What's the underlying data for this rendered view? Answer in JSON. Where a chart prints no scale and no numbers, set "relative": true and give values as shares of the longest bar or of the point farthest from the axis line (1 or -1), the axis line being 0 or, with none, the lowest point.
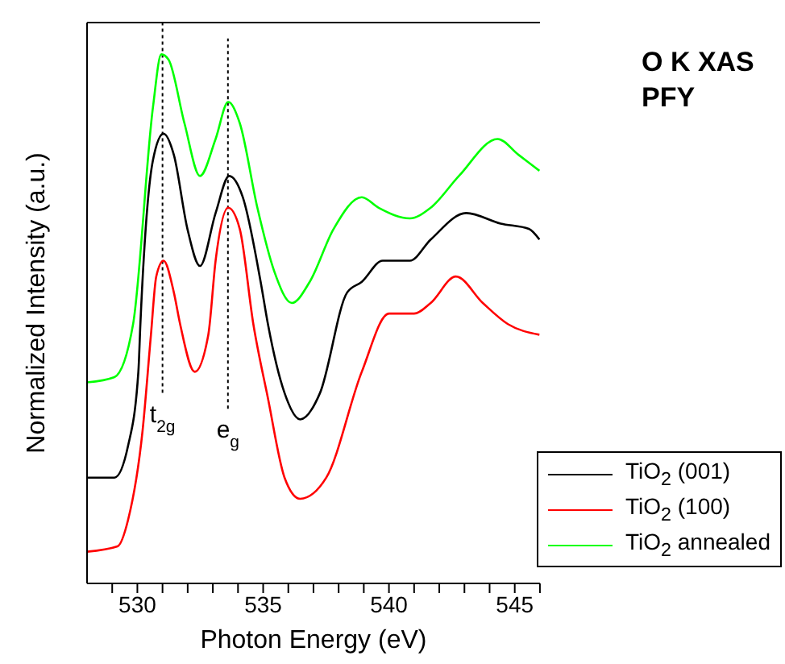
{
  "chart_data": {
    "type": "line",
    "title": "O K XAS",
    "subtitle": "PFY",
    "xlabel": "Photon Energy (eV)",
    "ylabel": "Normalized Intensity (a.u.)",
    "relative": true,
    "xlim": [
      528,
      546
    ],
    "xticks": [
      {
        "value": 529,
        "label": null
      },
      530,
      {
        "value": 531,
        "label": null
      },
      {
        "value": 532,
        "label": null
      },
      {
        "value": 533,
        "label": null
      },
      {
        "value": 534,
        "label": null
      },
      535,
      {
        "value": 536,
        "label": null
      },
      {
        "value": 537,
        "label": null
      },
      {
        "value": 538,
        "label": null
      },
      {
        "value": 539,
        "label": null
      },
      540,
      {
        "value": 541,
        "label": null
      },
      {
        "value": 542,
        "label": null
      },
      {
        "value": 543,
        "label": null
      },
      {
        "value": 544,
        "label": null
      },
      545,
      {
        "value": 546,
        "label": null
      }
    ],
    "legend": "bottom right",
    "grid": false,
    "marker": "none",
    "line_style": "solid",
    "ref_lines": [
      {
        "axis": "x",
        "value": 531,
        "label": "t$_{2g}$",
        "line_style": "dotted",
        "color": "#000000"
      },
      {
        "axis": "x",
        "value": 533.6,
        "label": "e$_{g}$",
        "line_style": "dotted",
        "color": "#000000"
      }
    ],
    "series": [
      {
        "name": "TiO$_{2}$ (001)",
        "color": "#000000",
        "x": [
          528.0,
          529.09,
          529.63,
          530.04,
          530.12,
          530.62,
          531.04,
          531.45,
          531.99,
          532.49,
          533.11,
          533.65,
          534.19,
          534.9,
          535.19,
          535.85,
          536.47,
          537.26,
          538.34,
          538.92,
          539.75,
          540.83,
          541.66,
          543.07,
          544.44,
          545.56,
          545.98
        ],
        "values": [
          0.2,
          0.2,
          0.26,
          0.4,
          0.49,
          0.8,
          0.85,
          0.81,
          0.67,
          0.6,
          0.7,
          0.77,
          0.73,
          0.57,
          0.49,
          0.36,
          0.31,
          0.36,
          0.55,
          0.57,
          0.61,
          0.61,
          0.65,
          0.7,
          0.68,
          0.67,
          0.65
        ]
      },
      {
        "name": "TiO$_{2}$ (100)",
        "color": "#ff0000",
        "x": [
          528.0,
          529.21,
          529.63,
          530.21,
          530.54,
          530.75,
          531.04,
          531.45,
          531.7,
          532.28,
          532.82,
          533.11,
          533.61,
          534.07,
          534.61,
          535.19,
          535.85,
          536.47,
          537.51,
          538.92,
          540.0,
          541.0,
          541.66,
          542.66,
          543.73,
          544.73,
          545.98
        ],
        "values": [
          0.06,
          0.07,
          0.12,
          0.29,
          0.47,
          0.58,
          0.61,
          0.55,
          0.49,
          0.4,
          0.47,
          0.61,
          0.71,
          0.67,
          0.49,
          0.35,
          0.2,
          0.16,
          0.2,
          0.4,
          0.51,
          0.51,
          0.53,
          0.58,
          0.53,
          0.49,
          0.47
        ]
      },
      {
        "name": "TiO$_{2}$ annealed",
        "color": "#00ff00",
        "x": [
          528.0,
          529.09,
          529.83,
          530.62,
          530.95,
          531.24,
          531.87,
          532.49,
          533.11,
          533.61,
          534.07,
          534.77,
          535.44,
          536.14,
          536.85,
          537.8,
          538.92,
          539.59,
          540.83,
          541.66,
          542.78,
          544.32,
          545.15,
          545.98
        ],
        "values": [
          0.38,
          0.39,
          0.49,
          0.9,
          1.0,
          0.99,
          0.87,
          0.77,
          0.84,
          0.91,
          0.87,
          0.71,
          0.59,
          0.53,
          0.57,
          0.67,
          0.73,
          0.71,
          0.69,
          0.71,
          0.77,
          0.84,
          0.81,
          0.78
        ]
      }
    ]
  }
}
